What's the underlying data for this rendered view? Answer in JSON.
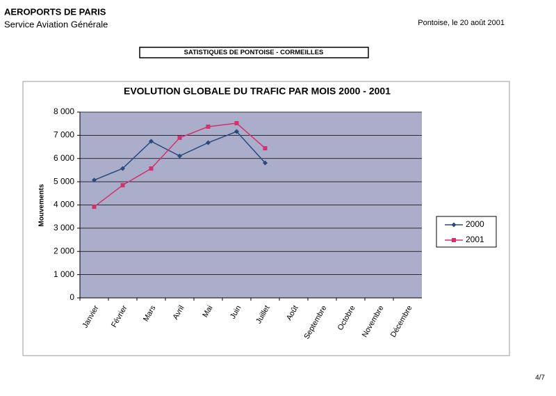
{
  "header": {
    "organization": "AEROPORTS DE PARIS",
    "department": "Service Aviation Générale",
    "place_date": "Pontoise, le 20 août 2001",
    "section_title": "SATISTIQUES DE PONTOISE - CORMEILLES"
  },
  "chart_data": {
    "type": "line",
    "title": "EVOLUTION GLOBALE DU TRAFIC PAR MOIS 2000 - 2001",
    "y_label": "Mouvements",
    "categories": [
      "Janvier",
      "Février",
      "Mars",
      "Avril",
      "Mai",
      "Juin",
      "Juillet",
      "Août",
      "Septembre",
      "Octobre",
      "Novembre",
      "Décembre"
    ],
    "series": [
      {
        "name": "2000",
        "color": "#2b4a7c",
        "marker": "diamond",
        "values": [
          5070,
          5570,
          6740,
          6110,
          6680,
          7160,
          5810,
          null,
          null,
          null,
          null,
          null
        ]
      },
      {
        "name": "2001",
        "color": "#d4306e",
        "marker": "square",
        "values": [
          3920,
          4850,
          5570,
          6890,
          7370,
          7520,
          6440,
          null,
          null,
          null,
          null,
          null
        ]
      }
    ],
    "ylim": [
      0,
      8000
    ],
    "yticks": [
      0,
      {
        "value": 1000,
        "label": "1 000"
      },
      {
        "value": 2000,
        "label": "2 000"
      },
      {
        "value": 3000,
        "label": "3 000"
      },
      {
        "value": 4000,
        "label": "4 000"
      },
      {
        "value": 5000,
        "label": "5 000"
      },
      {
        "value": 6000,
        "label": "6 000"
      },
      {
        "value": 7000,
        "label": "7 000"
      },
      {
        "value": 8000,
        "label": "8 000"
      }
    ],
    "grid": true,
    "legend": "right"
  },
  "page_number": "4/7"
}
